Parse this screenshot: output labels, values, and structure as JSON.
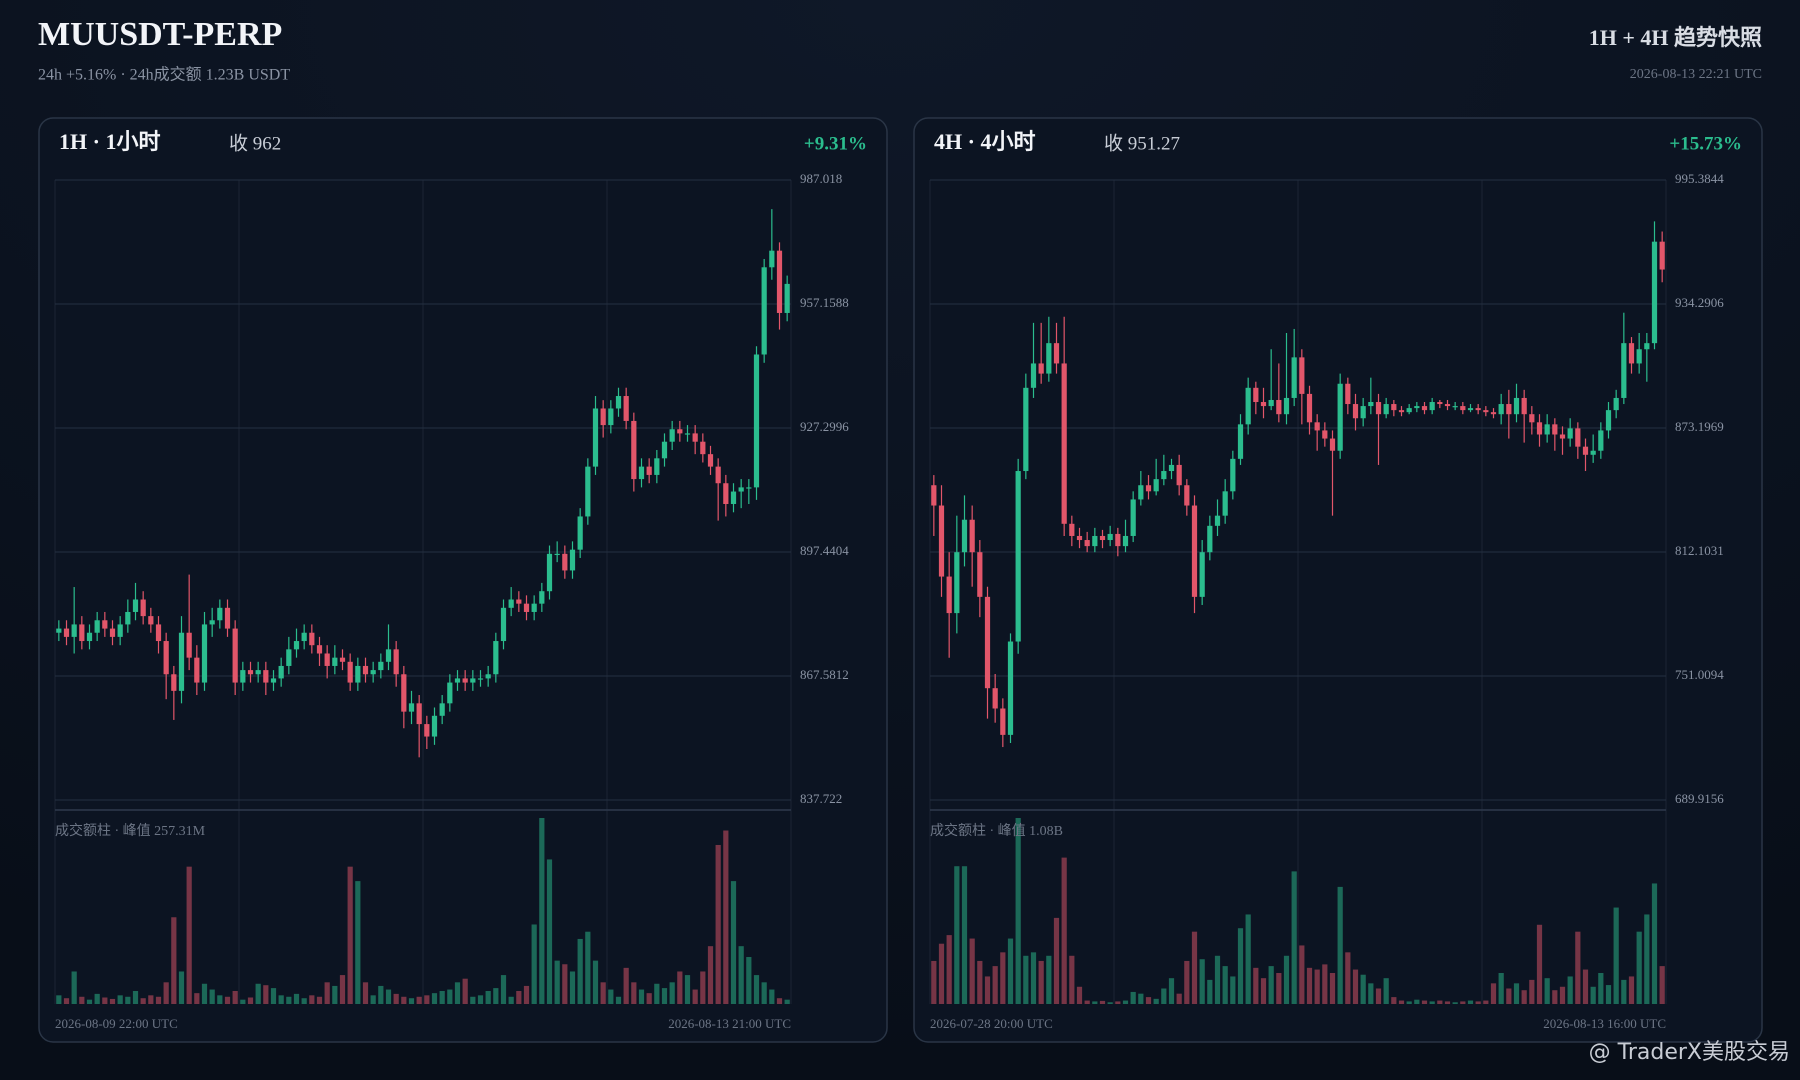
{
  "header": {
    "title": "MUUSDT-PERP",
    "subtitle": "24h +5.16% · 24h成交额 1.23B USDT",
    "right_title": "1H + 4H 趋势快照",
    "timestamp": "2026-08-13 22:21 UTC"
  },
  "watermark": "@ TraderX美股交易",
  "chart_data": [
    {
      "type": "candlestick",
      "title": "1H · 1小时",
      "close_text": "收 962",
      "change": "+9.31%",
      "up_color": "#2bbd8e",
      "down_color": "#e2566a",
      "ylim": [
        837.722,
        987.018
      ],
      "yticks": [
        987.018,
        957.1588,
        927.2996,
        897.4404,
        867.5812,
        837.722
      ],
      "grid": true,
      "volume_label": "成交额柱 · 峰值 257.31M",
      "x_start": "2026-08-09 22:00 UTC",
      "x_end": "2026-08-13 21:00 UTC",
      "open": [
        878,
        879,
        877,
        880,
        876,
        878,
        881,
        879,
        877,
        880,
        883,
        886,
        882,
        880,
        876,
        868,
        864,
        878,
        872,
        866,
        880,
        881,
        884,
        879,
        866,
        869,
        868,
        869,
        866,
        867,
        870,
        874,
        876,
        878,
        875,
        873,
        870,
        872,
        871,
        866,
        870,
        868,
        869,
        871,
        874,
        868,
        859,
        861,
        856,
        853,
        858,
        861,
        866,
        867,
        866,
        867,
        867,
        868,
        876,
        884,
        886,
        885,
        883,
        885,
        888,
        897,
        897,
        893,
        898,
        906,
        918,
        932,
        928,
        932,
        935,
        929,
        915,
        918,
        916,
        920,
        924,
        927,
        926,
        926,
        924,
        921,
        918,
        914,
        909,
        912,
        913,
        913,
        945,
        966,
        970,
        955
      ],
      "high": [
        881,
        881,
        889,
        882,
        880,
        883,
        883,
        881,
        882,
        886,
        890,
        888,
        884,
        882,
        878,
        870,
        882,
        892,
        875,
        883,
        884,
        886,
        886,
        881,
        871,
        871,
        871,
        871,
        869,
        872,
        877,
        879,
        880,
        880,
        877,
        875,
        875,
        874,
        873,
        872,
        872,
        871,
        873,
        880,
        876,
        870,
        864,
        863,
        858,
        860,
        863,
        868,
        869,
        869,
        869,
        869,
        870,
        878,
        886,
        889,
        888,
        887,
        887,
        890,
        899,
        900,
        899,
        900,
        908,
        920,
        935,
        934,
        934,
        937,
        937,
        931,
        920,
        920,
        922,
        926,
        929,
        929,
        928,
        928,
        926,
        923,
        920,
        916,
        914,
        915,
        915,
        947,
        968,
        980,
        972,
        964
      ],
      "low": [
        876,
        875,
        873,
        874,
        874,
        876,
        877,
        875,
        875,
        878,
        881,
        880,
        878,
        873,
        862,
        857,
        861,
        869,
        863,
        864,
        877,
        879,
        877,
        863,
        864,
        866,
        866,
        863,
        864,
        865,
        868,
        872,
        874,
        873,
        870,
        867,
        868,
        869,
        864,
        864,
        866,
        866,
        867,
        869,
        865,
        855,
        856,
        848,
        850,
        851,
        856,
        859,
        864,
        864,
        864,
        865,
        865,
        866,
        874,
        882,
        883,
        881,
        881,
        883,
        886,
        895,
        891,
        891,
        896,
        904,
        916,
        925,
        926,
        930,
        927,
        912,
        913,
        914,
        914,
        918,
        922,
        924,
        924,
        921,
        919,
        916,
        905,
        906,
        907,
        908,
        909,
        910,
        943,
        963,
        951,
        953
      ],
      "close": [
        879,
        877,
        880,
        876,
        878,
        881,
        879,
        877,
        880,
        883,
        886,
        882,
        880,
        876,
        868,
        864,
        878,
        872,
        866,
        880,
        881,
        884,
        879,
        866,
        869,
        868,
        869,
        866,
        867,
        870,
        874,
        876,
        878,
        875,
        873,
        870,
        872,
        871,
        866,
        870,
        868,
        869,
        871,
        874,
        868,
        859,
        861,
        856,
        853,
        858,
        861,
        866,
        867,
        866,
        867,
        867,
        868,
        876,
        884,
        886,
        885,
        883,
        885,
        888,
        897,
        897,
        893,
        898,
        906,
        918,
        932,
        928,
        932,
        935,
        929,
        915,
        918,
        916,
        920,
        924,
        927,
        926,
        926,
        924,
        921,
        918,
        914,
        909,
        912,
        913,
        913,
        945,
        966,
        970,
        955,
        962
      ],
      "volume": [
        12,
        8,
        45,
        10,
        6,
        14,
        9,
        7,
        12,
        10,
        18,
        8,
        12,
        10,
        30,
        120,
        45,
        190,
        15,
        28,
        20,
        12,
        10,
        18,
        6,
        9,
        28,
        26,
        22,
        12,
        10,
        14,
        8,
        12,
        10,
        30,
        25,
        40,
        190,
        170,
        30,
        12,
        25,
        20,
        14,
        10,
        8,
        10,
        12,
        15,
        18,
        20,
        30,
        35,
        10,
        12,
        18,
        22,
        40,
        10,
        18,
        25,
        110,
        257.31,
        200,
        60,
        55,
        45,
        90,
        100,
        60,
        30,
        20,
        10,
        50,
        30,
        20,
        15,
        28,
        22,
        30,
        45,
        40,
        20,
        45,
        80,
        220,
        240,
        170,
        80,
        65,
        40,
        30,
        20,
        8,
        6
      ]
    },
    {
      "type": "candlestick",
      "title": "4H · 4小时",
      "close_text": "收 951.27",
      "change": "+15.73%",
      "up_color": "#2bbd8e",
      "down_color": "#e2566a",
      "ylim": [
        689.9156,
        995.3844
      ],
      "yticks": [
        995.3844,
        934.2906,
        873.1969,
        812.1031,
        751.0094,
        689.9156
      ],
      "grid": true,
      "volume_label": "成交额柱 · 峰值 1.08B",
      "x_start": "2026-07-28 20:00 UTC",
      "x_end": "2026-08-13 16:00 UTC",
      "open": [
        845,
        835,
        800,
        782,
        812,
        828,
        812,
        790,
        745,
        735,
        722,
        768,
        852,
        893,
        905,
        900,
        915,
        905,
        826,
        820,
        818,
        815,
        820,
        818,
        821,
        815,
        820,
        838,
        845,
        842,
        848,
        852,
        855,
        845,
        835,
        790,
        812,
        825,
        830,
        842,
        858,
        875,
        893,
        886,
        884,
        887,
        880,
        888,
        908,
        890,
        876,
        872,
        868,
        862,
        895,
        885,
        878,
        884,
        886,
        880,
        885,
        882,
        881,
        883,
        884,
        882,
        886,
        885,
        884,
        884,
        882,
        883,
        882,
        881,
        880,
        885,
        880,
        888,
        880,
        876,
        870,
        875,
        870,
        868,
        873,
        864,
        860,
        862,
        872,
        882,
        888,
        915,
        905,
        912,
        915,
        965
      ],
      "high": [
        850,
        845,
        812,
        830,
        840,
        835,
        818,
        795,
        752,
        740,
        772,
        858,
        900,
        925,
        925,
        928,
        925,
        928,
        830,
        824,
        822,
        824,
        823,
        825,
        824,
        828,
        842,
        852,
        850,
        858,
        860,
        858,
        860,
        848,
        840,
        818,
        830,
        838,
        848,
        862,
        880,
        898,
        896,
        893,
        912,
        905,
        920,
        922,
        912,
        894,
        880,
        876,
        872,
        900,
        898,
        890,
        888,
        898,
        890,
        888,
        887,
        884,
        885,
        886,
        886,
        888,
        887,
        887,
        886,
        886,
        885,
        885,
        884,
        883,
        890,
        892,
        895,
        892,
        884,
        880,
        880,
        878,
        874,
        878,
        876,
        868,
        870,
        876,
        886,
        892,
        930,
        918,
        920,
        920,
        975,
        970
      ],
      "low": [
        820,
        790,
        760,
        772,
        805,
        795,
        780,
        730,
        728,
        716,
        718,
        762,
        848,
        888,
        895,
        896,
        900,
        820,
        815,
        814,
        812,
        812,
        814,
        815,
        810,
        812,
        817,
        835,
        838,
        840,
        845,
        848,
        840,
        830,
        782,
        786,
        808,
        820,
        826,
        838,
        855,
        870,
        880,
        878,
        882,
        876,
        875,
        884,
        875,
        870,
        862,
        864,
        830,
        858,
        880,
        872,
        874,
        880,
        855,
        878,
        879,
        879,
        880,
        881,
        880,
        880,
        883,
        882,
        882,
        880,
        881,
        880,
        879,
        878,
        875,
        868,
        876,
        866,
        870,
        864,
        866,
        862,
        860,
        864,
        858,
        852,
        856,
        858,
        868,
        878,
        885,
        900,
        900,
        896,
        912,
        945
      ],
      "close": [
        835,
        800,
        782,
        812,
        828,
        812,
        790,
        745,
        735,
        722,
        768,
        852,
        893,
        905,
        900,
        915,
        905,
        826,
        820,
        818,
        815,
        820,
        818,
        821,
        815,
        820,
        838,
        845,
        842,
        848,
        852,
        855,
        845,
        835,
        790,
        812,
        825,
        830,
        842,
        858,
        875,
        893,
        886,
        884,
        887,
        880,
        888,
        908,
        890,
        876,
        872,
        868,
        862,
        895,
        885,
        878,
        884,
        886,
        880,
        885,
        882,
        881,
        883,
        884,
        882,
        886,
        885,
        884,
        884,
        882,
        883,
        882,
        881,
        880,
        885,
        880,
        888,
        880,
        876,
        870,
        875,
        870,
        868,
        873,
        864,
        860,
        862,
        872,
        882,
        888,
        915,
        905,
        912,
        915,
        965,
        951.27
      ],
      "volume": [
        250,
        350,
        400,
        800,
        800,
        380,
        250,
        160,
        220,
        300,
        380,
        1080,
        280,
        300,
        250,
        280,
        500,
        850,
        280,
        100,
        20,
        15,
        18,
        10,
        15,
        20,
        70,
        60,
        40,
        30,
        90,
        150,
        60,
        250,
        420,
        260,
        140,
        280,
        220,
        160,
        440,
        520,
        210,
        150,
        220,
        180,
        280,
        770,
        340,
        210,
        200,
        230,
        180,
        680,
        300,
        200,
        170,
        120,
        90,
        150,
        40,
        20,
        15,
        25,
        20,
        15,
        20,
        15,
        10,
        15,
        20,
        15,
        20,
        120,
        180,
        90,
        120,
        80,
        140,
        460,
        150,
        80,
        100,
        160,
        420,
        200,
        100,
        180,
        110,
        560,
        140,
        160,
        420,
        520,
        700,
        220
      ]
    }
  ]
}
